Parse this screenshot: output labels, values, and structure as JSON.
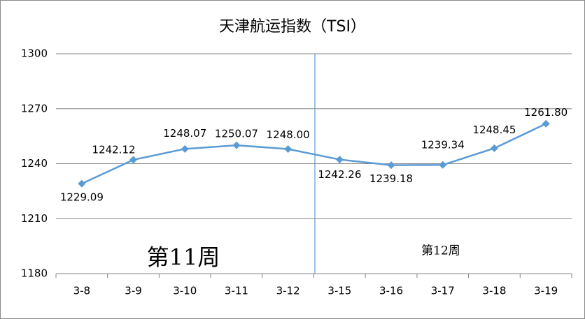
{
  "chart_data": {
    "type": "line",
    "title": "天津航运指数（TSI）",
    "categories": [
      "3-8",
      "3-9",
      "3-10",
      "3-11",
      "3-12",
      "3-15",
      "3-16",
      "3-17",
      "3-18",
      "3-19"
    ],
    "series": [
      {
        "name": "TSI",
        "color": "#5b9bd5",
        "values": [
          1229.09,
          1242.12,
          1248.07,
          1250.07,
          1248.0,
          1242.26,
          1239.18,
          1239.34,
          1248.45,
          1261.8
        ],
        "value_labels": [
          "1229.09",
          "1242.12",
          "1248.07",
          "1250.07",
          "1248.00",
          "1242.26",
          "1239.18",
          "1239.34",
          "1248.45",
          "1261.80"
        ]
      }
    ],
    "ylim": [
      1180,
      1300
    ],
    "yticks": [
      1180,
      1210,
      1240,
      1270,
      1300
    ],
    "grid": true,
    "annotations": [
      {
        "text": "第11周"
      },
      {
        "text": "第12周"
      }
    ]
  }
}
